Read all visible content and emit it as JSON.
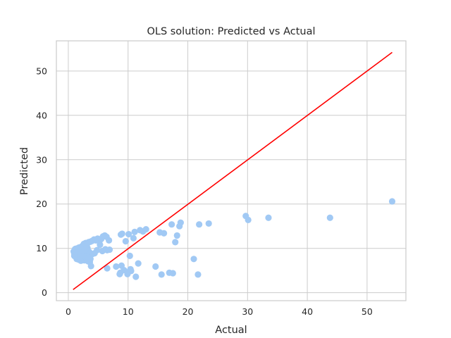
{
  "chart_data": {
    "type": "scatter",
    "title": "OLS solution: Predicted vs Actual",
    "xlabel": "Actual",
    "ylabel": "Predicted",
    "xlim": [
      -2,
      56.5
    ],
    "ylim": [
      -1.8,
      56.8
    ],
    "xticks": [
      0,
      10,
      20,
      30,
      40,
      50
    ],
    "yticks": [
      0,
      10,
      20,
      30,
      40,
      50
    ],
    "grid": true,
    "legend": "none",
    "colors": {
      "points": "#a1c9f4",
      "line": "#ff0000",
      "grid": "#cccccc",
      "axis": "#cccccc",
      "text": "#262626"
    },
    "series": [
      {
        "kind": "points",
        "x": [
          0.9,
          1.0,
          1.1,
          1.2,
          1.3,
          1.4,
          1.5,
          1.6,
          1.7,
          1.8,
          1.9,
          2.0,
          2.1,
          2.2,
          2.3,
          2.4,
          2.5,
          2.6,
          2.7,
          2.8,
          2.9,
          3.0,
          3.1,
          3.2,
          3.3,
          3.4,
          3.5,
          3.6,
          3.7,
          3.8,
          1.0,
          1.2,
          1.5,
          1.8,
          2.0,
          2.3,
          2.6,
          2.9,
          3.1,
          3.4,
          3.7,
          4.0,
          4.3,
          4.6,
          4.9,
          5.2,
          5.5,
          5.8,
          6.1,
          6.4,
          6.8,
          1.4,
          1.7,
          2.1,
          2.5,
          2.8,
          3.2,
          3.6,
          4.0,
          4.4,
          4.8,
          5.3,
          5.7,
          6.2,
          6.5,
          6.9,
          3.8,
          6.5,
          8.0,
          8.6,
          8.8,
          9.0,
          9.3,
          9.6,
          9.9,
          10.1,
          10.3,
          10.5,
          10.9,
          11.1,
          11.3,
          11.7,
          12.0,
          12.5,
          13.0,
          14.6,
          15.3,
          15.6,
          16.0,
          16.9,
          17.3,
          17.5,
          17.9,
          18.2,
          18.6,
          18.8,
          21.0,
          21.7,
          21.9,
          23.5,
          29.7,
          30.1,
          33.5,
          43.8,
          54.2,
          8.7,
          8.9,
          10.1,
          10.4
        ],
        "y": [
          9.3,
          8.3,
          9.8,
          8.1,
          9.5,
          7.6,
          10.0,
          8.8,
          7.5,
          9.0,
          8.1,
          9.6,
          7.2,
          8.6,
          10.3,
          7.8,
          8.9,
          10.6,
          7.3,
          8.2,
          9.9,
          7.9,
          8.6,
          10.1,
          7.1,
          8.4,
          9.2,
          6.9,
          7.6,
          8.8,
          8.8,
          9.9,
          8.5,
          10.2,
          8.0,
          10.5,
          11.0,
          11.2,
          10.8,
          11.4,
          11.5,
          11.7,
          12.0,
          11.8,
          12.2,
          11.6,
          12.1,
          12.7,
          12.9,
          12.6,
          11.8,
          9.1,
          9.4,
          8.7,
          8.3,
          9.7,
          8.1,
          8.4,
          8.7,
          8.9,
          9.6,
          10.8,
          9.4,
          9.8,
          9.6,
          9.7,
          6.0,
          5.5,
          5.9,
          4.2,
          13.1,
          13.3,
          5.1,
          11.6,
          4.2,
          13.2,
          8.3,
          4.9,
          12.3,
          13.7,
          3.6,
          6.6,
          14.1,
          13.8,
          14.3,
          5.9,
          13.6,
          4.1,
          13.4,
          4.5,
          15.4,
          4.4,
          11.4,
          12.9,
          15.0,
          15.8,
          7.6,
          4.1,
          15.4,
          15.6,
          17.3,
          16.4,
          16.9,
          16.9,
          20.6,
          4.5,
          6.1,
          4.7,
          5.3
        ]
      },
      {
        "kind": "line",
        "x": [
          0.8,
          54.2
        ],
        "y": [
          0.7,
          54.2
        ]
      }
    ]
  }
}
